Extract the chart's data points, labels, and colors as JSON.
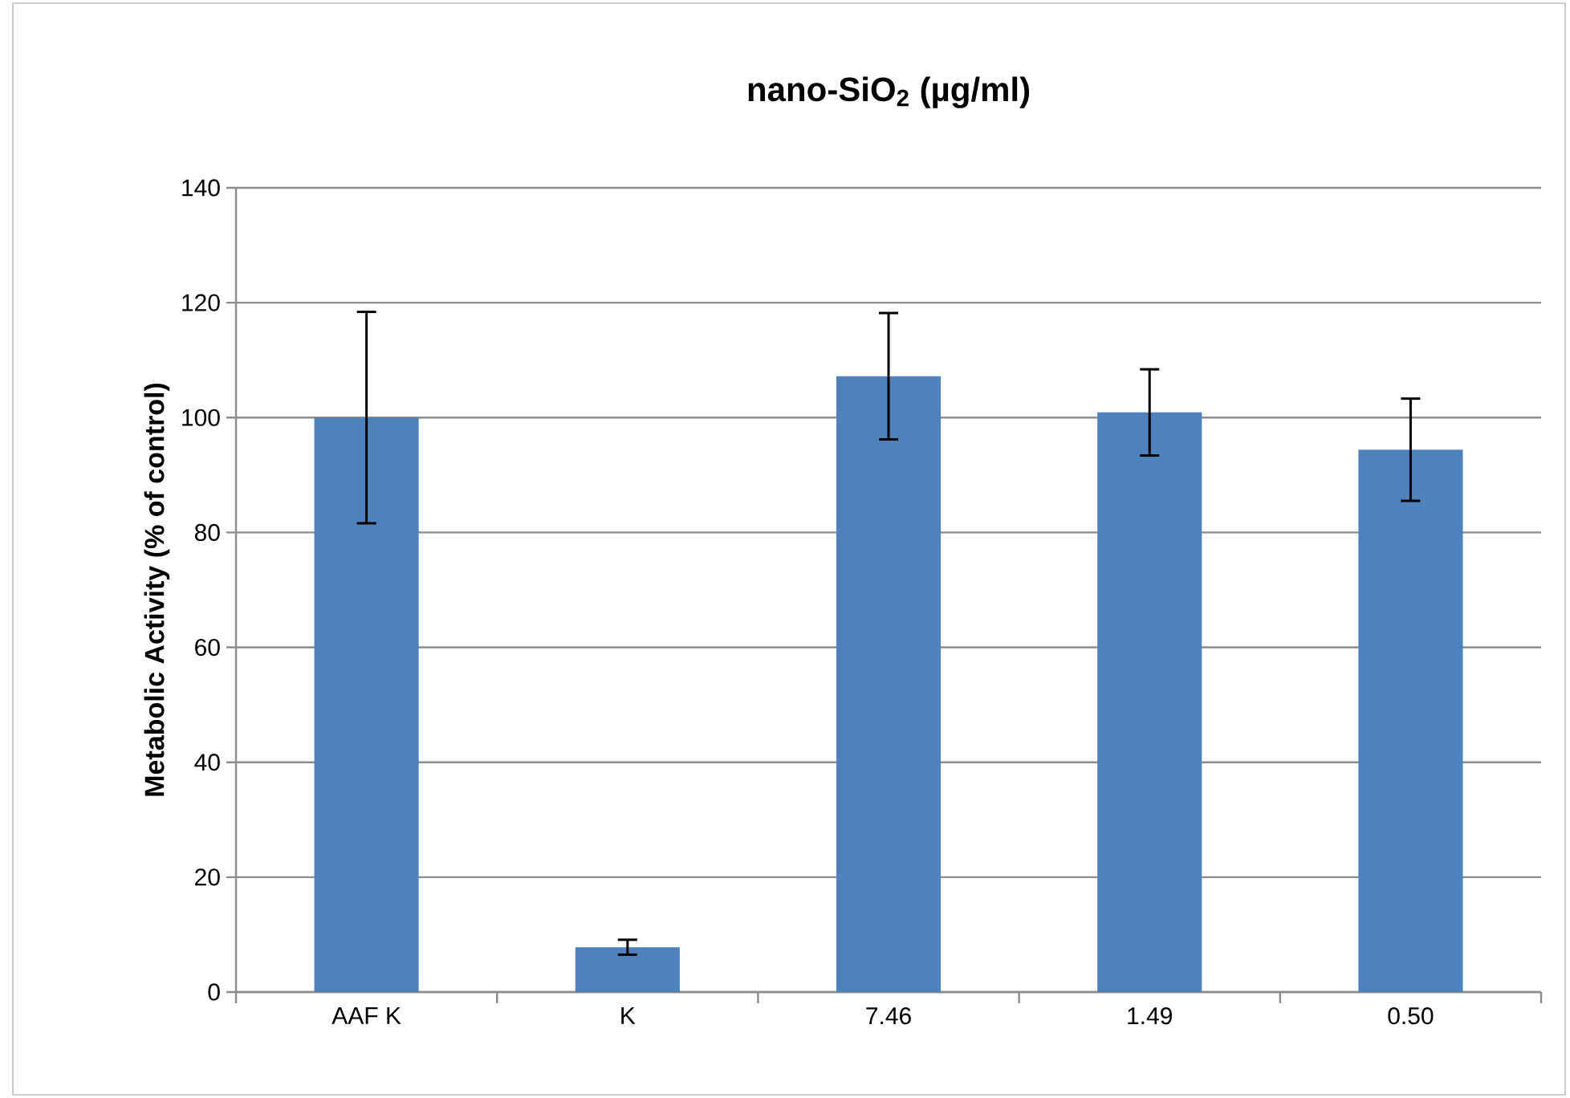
{
  "chart_data": {
    "type": "bar",
    "title": "nano-SiO$_{2}$ (µg/ml)",
    "ylabel": "Metabolic Activity (% of control)",
    "categories": [
      "AAF K",
      "K",
      "7.46",
      "1.49",
      "0.50"
    ],
    "values": [
      100,
      7.8,
      107.2,
      100.9,
      94.4
    ],
    "errors": [
      18.4,
      1.3,
      11,
      7.5,
      8.9
    ],
    "color": "#4f81bd",
    "ylim": [
      0,
      140
    ],
    "yticks": [
      0,
      20,
      40,
      60,
      80,
      100,
      120,
      140
    ],
    "grid": "y"
  }
}
